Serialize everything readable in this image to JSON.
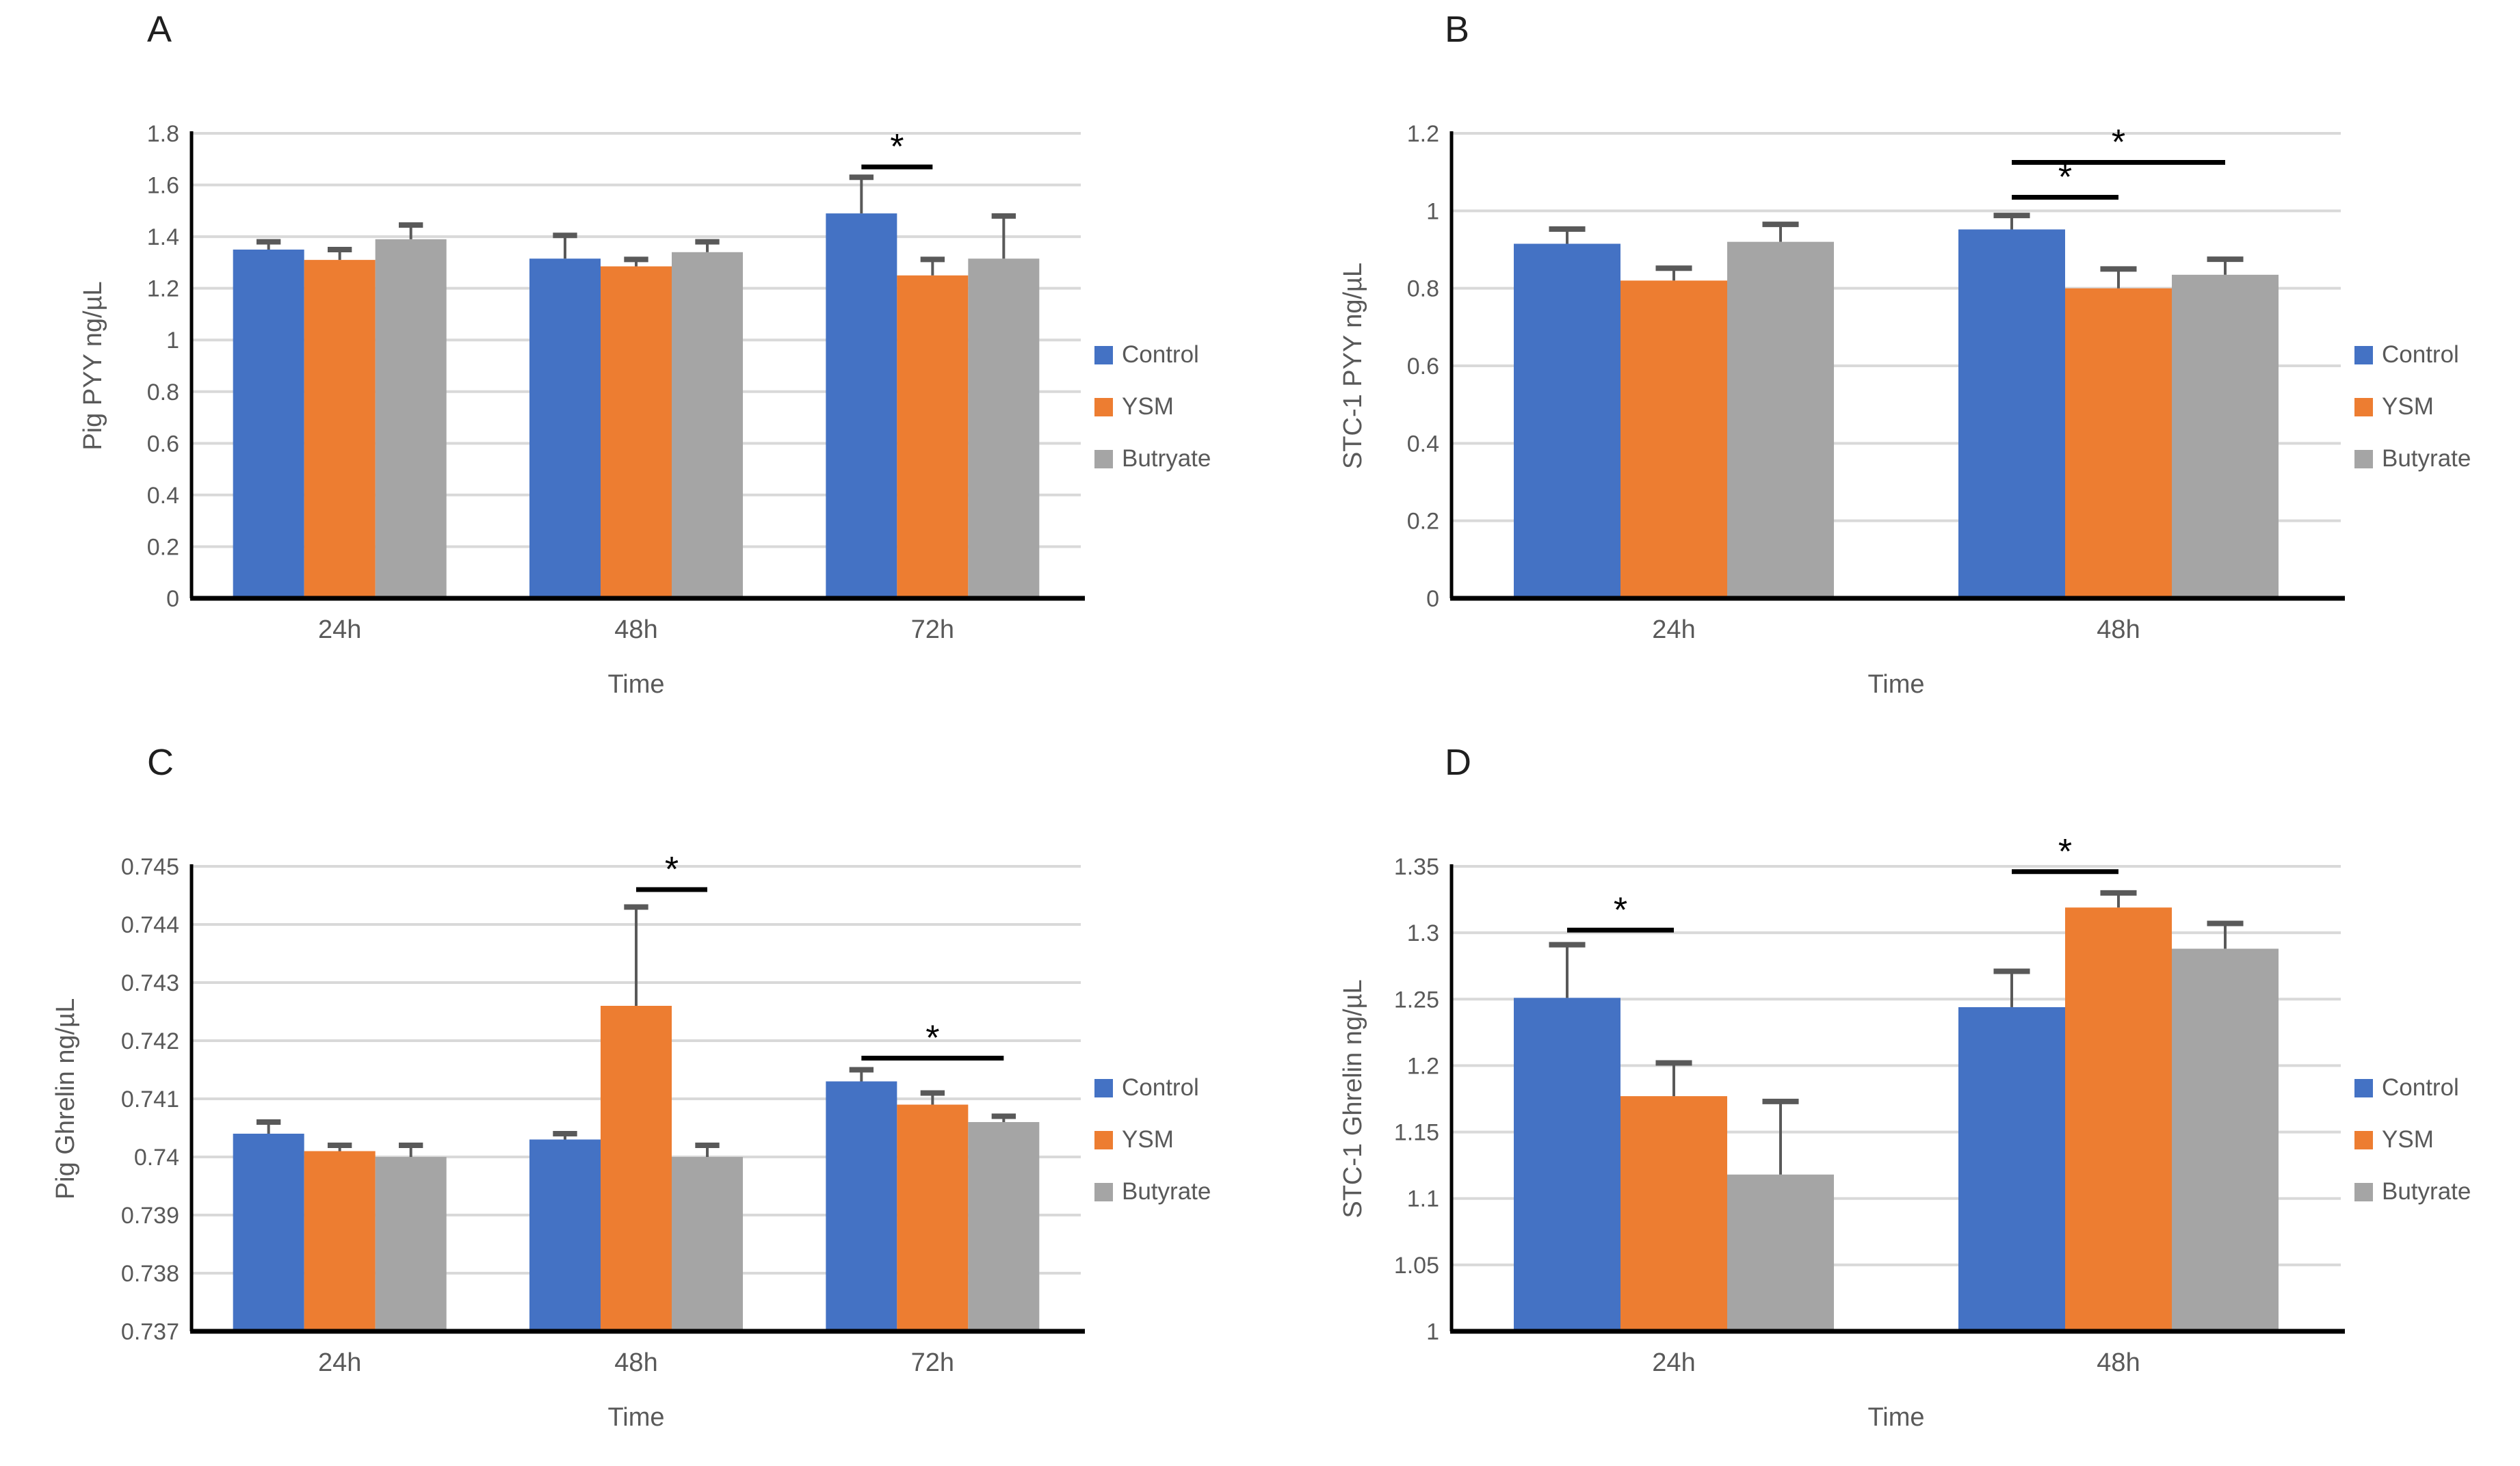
{
  "figure": {
    "background": "#FFFFFF",
    "text_color": "#595959",
    "gridline_color": "#D9D9D9",
    "axis_color": "#000000",
    "error_bar_color": "#595959",
    "significance_color": "#000000"
  },
  "chart_data": [
    {
      "panel_label": "A",
      "type": "bar",
      "title": "",
      "xlabel": "Time",
      "ylabel": "Pig PYY ng/µL",
      "ylim": [
        0,
        1.8
      ],
      "ytick_step": 0.2,
      "ytick_labels": [
        "0",
        "0.2",
        "0.4",
        "0.6",
        "0.8",
        "1",
        "1.2",
        "1.4",
        "1.6",
        "1.8"
      ],
      "categories": [
        "24h",
        "48h",
        "72h"
      ],
      "grid": true,
      "legend_position": "right",
      "series": [
        {
          "name": "Control",
          "color": "#4472C4",
          "values": [
            1.35,
            1.315,
            1.49
          ],
          "errors": [
            0.03,
            0.09,
            0.14
          ]
        },
        {
          "name": "YSM",
          "color": "#ED7D31",
          "values": [
            1.31,
            1.285,
            1.25
          ],
          "errors": [
            0.04,
            0.027,
            0.062
          ]
        },
        {
          "name": "Butryate",
          "color": "#A5A5A5",
          "values": [
            1.39,
            1.34,
            1.315
          ],
          "errors": [
            0.055,
            0.04,
            0.165
          ]
        }
      ],
      "significance": [
        {
          "category": "72h",
          "from": "Control",
          "to": "YSM",
          "line_y": 1.67,
          "label": "*"
        }
      ]
    },
    {
      "panel_label": "B",
      "type": "bar",
      "title": "",
      "xlabel": "Time",
      "ylabel": "STC-1 PYY ng/µL",
      "ylim": [
        0,
        1.2
      ],
      "ytick_step": 0.2,
      "ytick_labels": [
        "0",
        "0.2",
        "0.4",
        "0.6",
        "0.8",
        "1",
        "1.2"
      ],
      "categories": [
        "24h",
        "48h"
      ],
      "grid": true,
      "legend_position": "right",
      "series": [
        {
          "name": "Control",
          "color": "#4472C4",
          "values": [
            0.915,
            0.952
          ],
          "errors": [
            0.038,
            0.036
          ]
        },
        {
          "name": "YSM",
          "color": "#ED7D31",
          "values": [
            0.82,
            0.8
          ],
          "errors": [
            0.032,
            0.05
          ]
        },
        {
          "name": "Butyrate",
          "color": "#A5A5A5",
          "values": [
            0.92,
            0.835
          ],
          "errors": [
            0.045,
            0.04
          ]
        }
      ],
      "significance": [
        {
          "category": "48h",
          "from": "Control",
          "to": "YSM",
          "line_y": 1.035,
          "label": "*"
        },
        {
          "category": "48h",
          "from": "Control",
          "to": "Butyrate",
          "line_y": 1.125,
          "label": "*"
        }
      ]
    },
    {
      "panel_label": "C",
      "type": "bar",
      "title": "",
      "xlabel": "Time",
      "ylabel": "Pig Ghrelin ng/µL",
      "ylim": [
        0.737,
        0.745
      ],
      "ytick_step": 0.001,
      "ytick_labels": [
        "0.737",
        "0.738",
        "0.739",
        "0.74",
        "0.741",
        "0.742",
        "0.743",
        "0.744",
        "0.745"
      ],
      "categories": [
        "24h",
        "48h",
        "72h"
      ],
      "grid": true,
      "legend_position": "right",
      "series": [
        {
          "name": "Control",
          "color": "#4472C4",
          "values": [
            0.7404,
            0.7403,
            0.7413
          ],
          "errors": [
            0.0002,
            0.0001,
            0.0002
          ]
        },
        {
          "name": "YSM",
          "color": "#ED7D31",
          "values": [
            0.7401,
            0.7426,
            0.7409
          ],
          "errors": [
            0.0001,
            0.0017,
            0.0002
          ]
        },
        {
          "name": "Butyrate",
          "color": "#A5A5A5",
          "values": [
            0.74,
            0.74,
            0.7406
          ],
          "errors": [
            0.0002,
            0.0002,
            0.0001
          ]
        }
      ],
      "significance": [
        {
          "category": "48h",
          "from": "YSM",
          "to": "Butyrate",
          "line_y": 0.7446,
          "label": "*"
        },
        {
          "category": "72h",
          "from": "Control",
          "to": "Butyrate",
          "line_y": 0.7417,
          "label": "*"
        }
      ]
    },
    {
      "panel_label": "D",
      "type": "bar",
      "title": "",
      "xlabel": "Time",
      "ylabel": "STC-1 Ghrelin ng/µL",
      "ylim": [
        1,
        1.35
      ],
      "ytick_step": 0.05,
      "ytick_labels": [
        "1",
        "1.05",
        "1.1",
        "1.15",
        "1.2",
        "1.25",
        "1.3",
        "1.35"
      ],
      "categories": [
        "24h",
        "48h"
      ],
      "grid": true,
      "legend_position": "right",
      "series": [
        {
          "name": "Control",
          "color": "#4472C4",
          "values": [
            1.251,
            1.244
          ],
          "errors": [
            0.04,
            0.027
          ]
        },
        {
          "name": "YSM",
          "color": "#ED7D31",
          "values": [
            1.177,
            1.319
          ],
          "errors": [
            0.025,
            0.011
          ]
        },
        {
          "name": "Butyrate",
          "color": "#A5A5A5",
          "values": [
            1.118,
            1.288
          ],
          "errors": [
            0.055,
            0.019
          ]
        }
      ],
      "significance": [
        {
          "category": "24h",
          "from": "Control",
          "to": "YSM",
          "line_y": 1.302,
          "label": "*"
        },
        {
          "category": "48h",
          "from": "Control",
          "to": "YSM",
          "line_y": 1.346,
          "label": "*"
        }
      ]
    }
  ]
}
